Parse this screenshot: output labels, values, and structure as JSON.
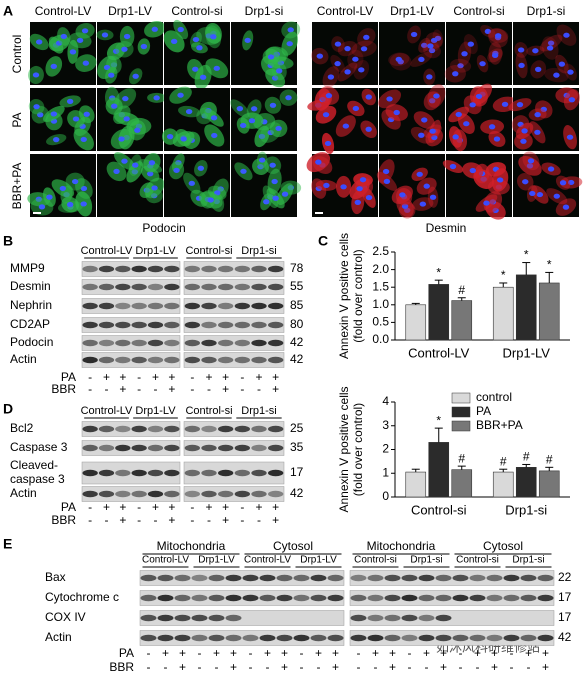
{
  "panel_a": {
    "letter": "A",
    "podocin": {
      "columns": [
        "Control-LV",
        "Drp1-LV",
        "Control-si",
        "Drp1-si"
      ],
      "caption": "Podocin"
    },
    "desmin": {
      "columns": [
        "Control-LV",
        "Drp1-LV",
        "Control-si",
        "Drp1-si"
      ],
      "caption": "Desmin"
    },
    "rows": [
      "Control",
      "PA",
      "BBR+PA"
    ]
  },
  "panel_b": {
    "letter": "B",
    "groups": [
      "Control-LV",
      "Drp1-LV",
      "Control-si",
      "Drp1-si"
    ],
    "proteins": [
      {
        "name": [
          "MMP9"
        ],
        "kda": 78
      },
      {
        "name": [
          "Desmin"
        ],
        "kda": 55
      },
      {
        "name": [
          "Nephrin"
        ],
        "kda": 85
      },
      {
        "name": [
          "CD2AP"
        ],
        "kda": 80
      },
      {
        "name": [
          "Podocin"
        ],
        "kda": 42
      },
      {
        "name": [
          "Actin"
        ],
        "kda": 42
      }
    ],
    "pa_label": "PA",
    "bbr_label": "BBR",
    "pa": [
      "-",
      "+",
      "+",
      "-",
      "+",
      "+",
      "-",
      "+",
      "+",
      "-",
      "+",
      "+"
    ],
    "bbr": [
      "-",
      "-",
      "+",
      "-",
      "-",
      "+",
      "-",
      "-",
      "+",
      "-",
      "-",
      "+"
    ]
  },
  "panel_c": {
    "letter": "C"
  },
  "panel_d": {
    "letter": "D",
    "groups": [
      "Control-LV",
      "Drp1-LV",
      "Control-si",
      "Drp1-si"
    ],
    "proteins": [
      {
        "name": [
          "Bcl2"
        ],
        "kda": 25
      },
      {
        "name": [
          "Caspase 3"
        ],
        "kda": 35
      },
      {
        "name": [
          "Cleaved-",
          "caspase 3"
        ],
        "kda": 17
      },
      {
        "name": [
          "Actin"
        ],
        "kda": 42
      }
    ],
    "pa_label": "PA",
    "bbr_label": "BBR",
    "pa": [
      "-",
      "+",
      "+",
      "-",
      "+",
      "+",
      "-",
      "+",
      "+",
      "-",
      "+",
      "+"
    ],
    "bbr": [
      "-",
      "-",
      "+",
      "-",
      "-",
      "+",
      "-",
      "-",
      "+",
      "-",
      "-",
      "+"
    ]
  },
  "panel_e": {
    "letter": "E",
    "fractions": [
      "Mitochondria",
      "Cytosol",
      "Mitochondria",
      "Cytosol"
    ],
    "groups": [
      "Control-LV",
      "Drp1-LV",
      "Control-LV",
      "Drp1-LV",
      "Control-si",
      "Drp1-si",
      "Control-si",
      "Drp1-si"
    ],
    "proteins": [
      {
        "name": [
          "Bax"
        ],
        "kda": 22
      },
      {
        "name": [
          "Cytochrome c"
        ],
        "kda": 17
      },
      {
        "name": [
          "COX IV"
        ],
        "kda": 17
      },
      {
        "name": [
          "Actin"
        ],
        "kda": 42
      }
    ],
    "pa_label": "PA",
    "bbr_label": "BBR",
    "pa": [
      "-",
      "+",
      "+",
      "-",
      "+",
      "+",
      "-",
      "+",
      "+",
      "-",
      "+",
      "+",
      "-",
      "+",
      "+",
      "-",
      "+",
      "+",
      "-",
      "+",
      "+",
      "-",
      "+",
      "+"
    ],
    "bbr": [
      "-",
      "-",
      "+",
      "-",
      "-",
      "+",
      "-",
      "-",
      "+",
      "-",
      "-",
      "+",
      "-",
      "-",
      "+",
      "-",
      "-",
      "+",
      "-",
      "-",
      "+",
      "-",
      "-",
      "+"
    ]
  },
  "watermark": "如沐风科研维修站",
  "chart_data": [
    {
      "type": "bar",
      "ylabel": [
        "Annexin V positive cells",
        "(fold over control)"
      ],
      "categories": [
        "Control-LV",
        "Drp1-LV"
      ],
      "series": [
        {
          "color": "#d9d9d9",
          "values": [
            1.0,
            1.5
          ],
          "errors": [
            0.04,
            0.12
          ],
          "labels": [
            null,
            "*"
          ]
        },
        {
          "color": "#2b2b2b",
          "values": [
            1.58,
            1.85
          ],
          "errors": [
            0.12,
            0.35
          ],
          "labels": [
            "*",
            "*"
          ]
        },
        {
          "color": "#777777",
          "values": [
            1.12,
            1.62
          ],
          "errors": [
            0.08,
            0.3
          ],
          "labels": [
            "#",
            "*"
          ]
        }
      ],
      "ylim": [
        0,
        2.5
      ],
      "yticks": [
        {
          "value": 0,
          "label": "0.0"
        },
        0.5,
        {
          "value": 1,
          "label": "1.0"
        },
        1.5,
        {
          "value": 2,
          "label": "2.0"
        },
        2.5
      ]
    },
    {
      "type": "bar",
      "ylabel": [
        "Annexin V positive cells",
        "(fold over control)"
      ],
      "categories": [
        "Control-si",
        "Drp1-si"
      ],
      "series": [
        {
          "name": "control",
          "color": "#d9d9d9",
          "values": [
            1.05,
            1.05
          ],
          "errors": [
            0.12,
            0.12
          ],
          "labels": [
            null,
            "#"
          ]
        },
        {
          "name": "PA",
          "color": "#2b2b2b",
          "values": [
            2.3,
            1.25
          ],
          "errors": [
            0.6,
            0.12
          ],
          "labels": [
            "*",
            "#"
          ]
        },
        {
          "name": "BBR+PA",
          "color": "#777777",
          "values": [
            1.15,
            1.1
          ],
          "errors": [
            0.15,
            0.15
          ],
          "labels": [
            "#",
            "#"
          ]
        }
      ],
      "ylim": [
        0,
        4
      ],
      "yticks": [
        0,
        1,
        2,
        3,
        4
      ],
      "legend": "upper right"
    }
  ]
}
